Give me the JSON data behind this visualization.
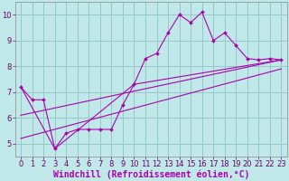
{
  "bg_color": "#c0e8e8",
  "grid_color": "#96c8c8",
  "line_color": "#aa00aa",
  "marker_color": "#aa00aa",
  "xlabel": "Windchill (Refroidissement éolien,°C)",
  "xlabel_color": "#aa00aa",
  "ylim": [
    4.5,
    10.5
  ],
  "xlim": [
    -0.5,
    23.5
  ],
  "yticks": [
    5,
    6,
    7,
    8,
    9,
    10
  ],
  "xticks": [
    0,
    1,
    2,
    3,
    4,
    5,
    6,
    7,
    8,
    9,
    10,
    11,
    12,
    13,
    14,
    15,
    16,
    17,
    18,
    19,
    20,
    21,
    22,
    23
  ],
  "line1_x": [
    0,
    1,
    2,
    3,
    4,
    5,
    6,
    7,
    8,
    9,
    10,
    11,
    12,
    13,
    14,
    15,
    16,
    17,
    18,
    19,
    20,
    21,
    22,
    23
  ],
  "line1_y": [
    7.2,
    6.7,
    6.7,
    4.8,
    5.4,
    5.55,
    5.55,
    5.55,
    5.55,
    6.5,
    7.3,
    8.3,
    8.5,
    9.3,
    10.0,
    9.7,
    10.1,
    9.0,
    9.3,
    8.8,
    8.3,
    8.25,
    8.3,
    8.25
  ],
  "line2_x": [
    0,
    3,
    10,
    23
  ],
  "line2_y": [
    7.2,
    4.8,
    7.3,
    8.25
  ],
  "line3_x": [
    0,
    23
  ],
  "line3_y": [
    5.2,
    7.9
  ],
  "line4_x": [
    0,
    23
  ],
  "line4_y": [
    6.1,
    8.25
  ],
  "tick_fontsize": 6.0,
  "xlabel_fontsize": 7.0
}
